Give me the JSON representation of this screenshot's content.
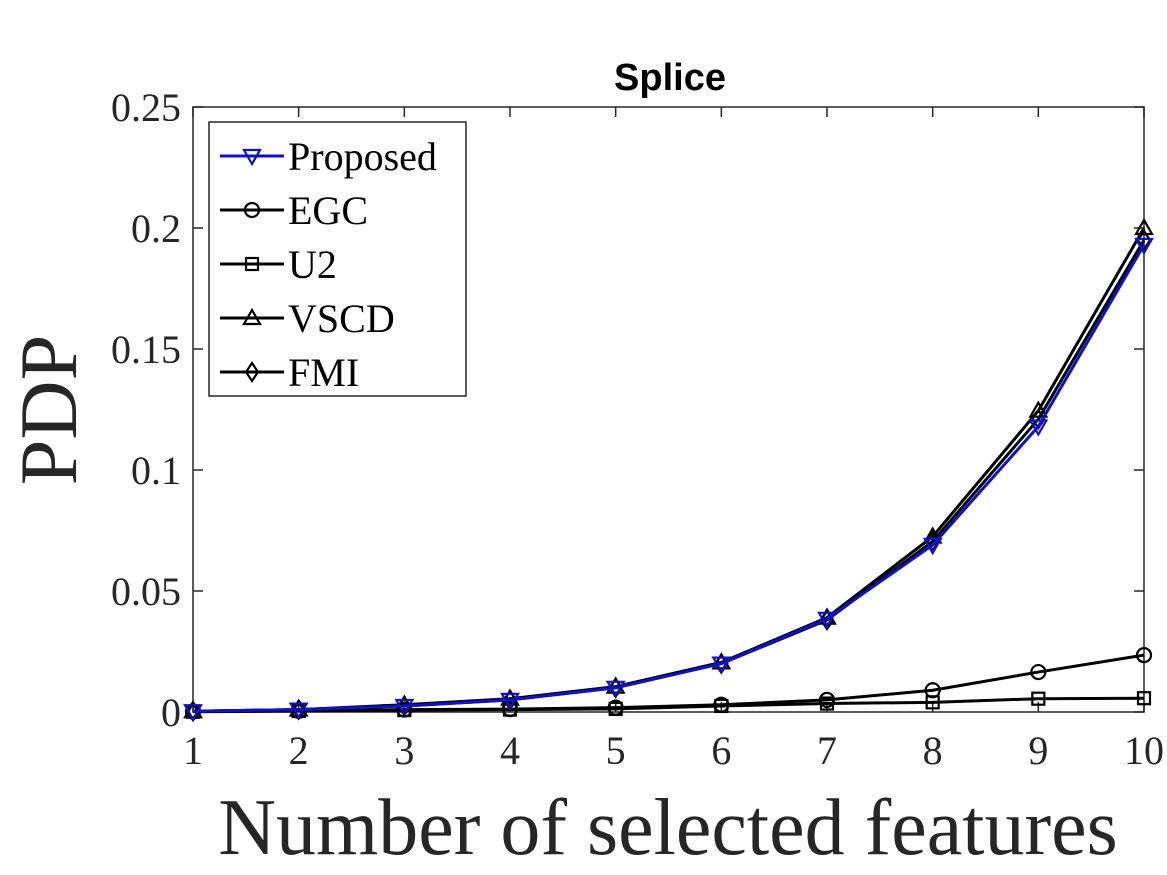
{
  "chart_data": {
    "type": "line",
    "title": "Splice",
    "xlabel": "Number of selected features",
    "ylabel": "PDP",
    "x": [
      1,
      2,
      3,
      4,
      5,
      6,
      7,
      8,
      9,
      10
    ],
    "xlim": [
      1,
      10
    ],
    "ylim": [
      0,
      0.25
    ],
    "xticks": [
      "1",
      "2",
      "3",
      "4",
      "5",
      "6",
      "7",
      "8",
      "9",
      "10"
    ],
    "yticks": [
      {
        "value": 0,
        "label": "0"
      },
      {
        "value": 0.05,
        "label": "0.05"
      },
      {
        "value": 0.1,
        "label": "0.1"
      },
      {
        "value": 0.15,
        "label": "0.15"
      },
      {
        "value": 0.2,
        "label": "0.2"
      },
      {
        "value": 0.25,
        "label": "0.25"
      }
    ],
    "grid": false,
    "legend_position": "top-left",
    "series": [
      {
        "name": "Proposed",
        "marker": "triangle-down",
        "color": "#1010c8",
        "values": [
          0.0003,
          0.001,
          0.0025,
          0.005,
          0.01,
          0.02,
          0.0385,
          0.069,
          0.118,
          0.193
        ]
      },
      {
        "name": "EGC",
        "marker": "circle",
        "color": "#000000",
        "values": [
          0.0002,
          0.0005,
          0.001,
          0.0012,
          0.0018,
          0.003,
          0.005,
          0.009,
          0.0165,
          0.0235
        ]
      },
      {
        "name": "U2",
        "marker": "square",
        "color": "#000000",
        "values": [
          0.0001,
          0.0004,
          0.0008,
          0.001,
          0.0013,
          0.0025,
          0.0035,
          0.004,
          0.0055,
          0.0057
        ]
      },
      {
        "name": "VSCD",
        "marker": "triangle-up",
        "color": "#000000",
        "values": [
          0.0003,
          0.001,
          0.003,
          0.0055,
          0.0105,
          0.0205,
          0.039,
          0.0725,
          0.1245,
          0.2
        ]
      },
      {
        "name": "FMI",
        "marker": "diamond",
        "color": "#000000",
        "values": [
          0.0003,
          0.001,
          0.0025,
          0.005,
          0.01,
          0.02,
          0.038,
          0.0705,
          0.121,
          0.195
        ]
      }
    ]
  }
}
